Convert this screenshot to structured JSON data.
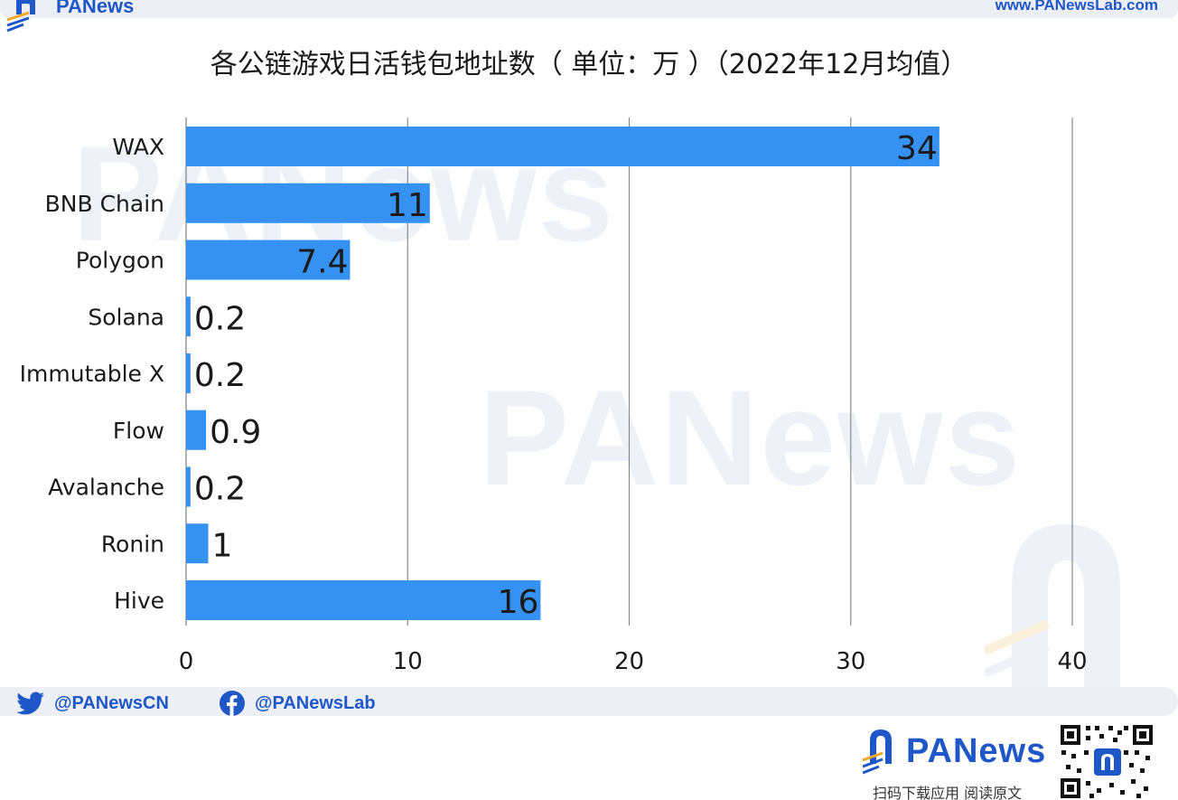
{
  "header": {
    "brand": "PANews",
    "url": "www.PANewsLab.com"
  },
  "watermark": {
    "text": "PANews"
  },
  "social": {
    "twitter_handle": "@PANewsCN",
    "facebook_handle": "@PANewsLab"
  },
  "footer": {
    "brand": "PANews",
    "tagline": "扫码下载应用 阅读原文"
  },
  "colors": {
    "bar": "#3592f3",
    "brand_blue": "#1f57c9",
    "brand_orange": "#f5a623",
    "gridline": "#8a8a8a"
  },
  "chart_data": {
    "type": "bar",
    "orientation": "horizontal",
    "title": "各公链游戏日活钱包地址数（ 单位：万 ）（2022年12月均值）",
    "xlabel": "",
    "ylabel": "",
    "categories": [
      "WAX",
      "BNB Chain",
      "Polygon",
      "Solana",
      "Immutable X",
      "Flow",
      "Avalanche",
      "Ronin",
      "Hive"
    ],
    "values": [
      34,
      11,
      7.4,
      0.2,
      0.2,
      0.9,
      0.2,
      1,
      16
    ],
    "value_labels": [
      "34",
      "11",
      "7.4",
      "0.2",
      "0.2",
      "0.9",
      "0.2",
      "1",
      "16"
    ],
    "xlim": [
      0,
      40
    ],
    "xticks": [
      "0",
      "10",
      "20",
      "30",
      "40"
    ],
    "grid": "vertical",
    "legend": "none"
  }
}
